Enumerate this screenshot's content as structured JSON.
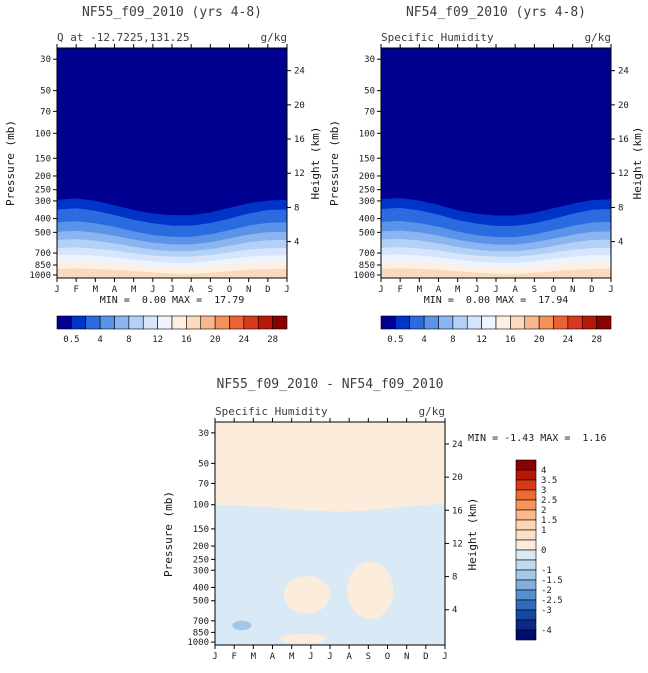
{
  "chart_data": [
    {
      "type": "contour",
      "title": "NF55_f09_2010 (yrs 4-8)",
      "subtitle": "Q at -12.7225,131.25",
      "units": "g/kg",
      "stats": "MIN =  0.00 MAX =  17.79",
      "min": 0.0,
      "max": 17.79,
      "ylabel_left": "Pressure (mb)",
      "ylabel_right": "Height (km)",
      "xlabel_ticks": [
        "J",
        "F",
        "M",
        "A",
        "M",
        "J",
        "J",
        "A",
        "S",
        "O",
        "N",
        "D",
        "J"
      ],
      "pressure_ticks": [
        30,
        50,
        70,
        100,
        150,
        200,
        250,
        300,
        400,
        500,
        700,
        850,
        1000
      ],
      "height_ticks": [
        24,
        20,
        16,
        12,
        8,
        4
      ],
      "y_scale": "log",
      "ylim_mb": [
        1050,
        25
      ],
      "background_value_color": "#000090",
      "contour_bands": [
        {
          "level": 0.5,
          "fill_below": "#0034c8",
          "pressure_by_month": [
            295,
            288,
            300,
            322,
            348,
            368,
            378,
            378,
            362,
            336,
            312,
            298,
            295
          ]
        },
        {
          "level": 2,
          "fill_below": "#2a6cdf",
          "pressure_by_month": [
            345,
            338,
            352,
            378,
            408,
            432,
            448,
            448,
            430,
            400,
            368,
            348,
            345
          ]
        },
        {
          "level": 4,
          "fill_below": "#5b93e8",
          "pressure_by_month": [
            425,
            418,
            432,
            458,
            492,
            522,
            538,
            538,
            516,
            482,
            448,
            428,
            425
          ]
        },
        {
          "level": 6,
          "fill_below": "#8ab5f0",
          "pressure_by_month": [
            495,
            488,
            502,
            528,
            562,
            592,
            608,
            608,
            586,
            552,
            518,
            498,
            495
          ]
        },
        {
          "level": 8,
          "fill_below": "#b3d0f7",
          "pressure_by_month": [
            565,
            558,
            572,
            598,
            632,
            662,
            678,
            678,
            656,
            622,
            588,
            568,
            565
          ]
        },
        {
          "level": 10,
          "fill_below": "#d6e5fb",
          "pressure_by_month": [
            645,
            638,
            652,
            672,
            702,
            728,
            742,
            742,
            722,
            692,
            662,
            648,
            645
          ]
        },
        {
          "level": 12,
          "fill_below": "#edf4fd",
          "pressure_by_month": [
            725,
            718,
            732,
            752,
            778,
            802,
            818,
            818,
            798,
            768,
            742,
            728,
            725
          ]
        },
        {
          "level": 14,
          "fill_below": "#fdf0e2",
          "pressure_by_month": [
            815,
            808,
            818,
            832,
            858,
            878,
            892,
            892,
            872,
            848,
            828,
            818,
            815
          ]
        },
        {
          "level": 16,
          "fill_below": "#fbd9bd",
          "pressure_by_month": [
            905,
            898,
            908,
            918,
            938,
            958,
            978,
            982,
            962,
            938,
            918,
            908,
            905
          ]
        }
      ],
      "colorbar": {
        "colors": [
          "#000090",
          "#0034c8",
          "#2a6cdf",
          "#5b93e8",
          "#8ab5f0",
          "#b3d0f7",
          "#d6e5fb",
          "#edf4fd",
          "#fdf0e2",
          "#fbd9bd",
          "#f8b88d",
          "#f4925c",
          "#ea6335",
          "#d63920",
          "#b51807",
          "#8b0000"
        ],
        "labels": [
          {
            "i": 0,
            "t": "0.5"
          },
          {
            "i": 2,
            "t": "4"
          },
          {
            "i": 4,
            "t": "8"
          },
          {
            "i": 6,
            "t": "12"
          },
          {
            "i": 8,
            "t": "16"
          },
          {
            "i": 10,
            "t": "20"
          },
          {
            "i": 12,
            "t": "24"
          },
          {
            "i": 14,
            "t": "28"
          }
        ]
      }
    },
    {
      "type": "contour",
      "title": "NF54_f09_2010 (yrs 4-8)",
      "subtitle": "Specific Humidity",
      "units": "g/kg",
      "stats": "MIN =  0.00 MAX =  17.94",
      "min": 0.0,
      "max": 17.94,
      "ylabel_left": "Pressure (mb)",
      "ylabel_right": "Height (km)",
      "xlabel_ticks": [
        "J",
        "F",
        "M",
        "A",
        "M",
        "J",
        "J",
        "A",
        "S",
        "O",
        "N",
        "D",
        "J"
      ],
      "pressure_ticks": [
        30,
        50,
        70,
        100,
        150,
        200,
        250,
        300,
        400,
        500,
        700,
        850,
        1000
      ],
      "height_ticks": [
        24,
        20,
        16,
        12,
        8,
        4
      ],
      "y_scale": "log",
      "ylim_mb": [
        1050,
        25
      ],
      "background_value_color": "#000090",
      "contour_bands": [
        {
          "level": 0.5,
          "fill_below": "#0034c8",
          "pressure_by_month": [
            292,
            286,
            298,
            320,
            350,
            370,
            380,
            380,
            364,
            338,
            314,
            296,
            292
          ]
        },
        {
          "level": 2,
          "fill_below": "#2a6cdf",
          "pressure_by_month": [
            342,
            336,
            350,
            376,
            410,
            434,
            450,
            450,
            432,
            402,
            370,
            346,
            342
          ]
        },
        {
          "level": 4,
          "fill_below": "#5b93e8",
          "pressure_by_month": [
            422,
            416,
            430,
            456,
            494,
            524,
            540,
            540,
            518,
            484,
            450,
            426,
            422
          ]
        },
        {
          "level": 6,
          "fill_below": "#8ab5f0",
          "pressure_by_month": [
            492,
            486,
            500,
            526,
            564,
            594,
            610,
            610,
            588,
            554,
            520,
            496,
            492
          ]
        },
        {
          "level": 8,
          "fill_below": "#b3d0f7",
          "pressure_by_month": [
            562,
            556,
            570,
            596,
            634,
            664,
            680,
            680,
            658,
            624,
            590,
            566,
            562
          ]
        },
        {
          "level": 10,
          "fill_below": "#d6e5fb",
          "pressure_by_month": [
            642,
            636,
            650,
            670,
            704,
            730,
            744,
            744,
            724,
            694,
            664,
            646,
            642
          ]
        },
        {
          "level": 12,
          "fill_below": "#edf4fd",
          "pressure_by_month": [
            722,
            716,
            730,
            750,
            780,
            804,
            820,
            820,
            800,
            770,
            744,
            726,
            722
          ]
        },
        {
          "level": 14,
          "fill_below": "#fdf0e2",
          "pressure_by_month": [
            812,
            806,
            816,
            830,
            860,
            880,
            894,
            894,
            874,
            850,
            830,
            816,
            812
          ]
        },
        {
          "level": 16,
          "fill_below": "#fbd9bd",
          "pressure_by_month": [
            902,
            896,
            906,
            916,
            940,
            960,
            980,
            984,
            964,
            940,
            920,
            906,
            902
          ]
        }
      ],
      "colorbar": {
        "colors": [
          "#000090",
          "#0034c8",
          "#2a6cdf",
          "#5b93e8",
          "#8ab5f0",
          "#b3d0f7",
          "#d6e5fb",
          "#edf4fd",
          "#fdf0e2",
          "#fbd9bd",
          "#f8b88d",
          "#f4925c",
          "#ea6335",
          "#d63920",
          "#b51807",
          "#8b0000"
        ],
        "labels": [
          {
            "i": 0,
            "t": "0.5"
          },
          {
            "i": 2,
            "t": "4"
          },
          {
            "i": 4,
            "t": "8"
          },
          {
            "i": 6,
            "t": "12"
          },
          {
            "i": 8,
            "t": "16"
          },
          {
            "i": 10,
            "t": "20"
          },
          {
            "i": 12,
            "t": "24"
          },
          {
            "i": 14,
            "t": "28"
          }
        ]
      }
    },
    {
      "type": "contour-diff",
      "title": "NF55_f09_2010 - NF54_f09_2010",
      "subtitle": "Specific Humidity",
      "units": "g/kg",
      "stats": "MIN = -1.43 MAX =  1.16",
      "min": -1.43,
      "max": 1.16,
      "ylabel_left": "Pressure (mb)",
      "ylabel_right": "Height (km)",
      "xlabel_ticks": [
        "J",
        "F",
        "M",
        "A",
        "M",
        "J",
        "J",
        "A",
        "S",
        "O",
        "N",
        "D",
        "J"
      ],
      "pressure_ticks": [
        30,
        50,
        70,
        100,
        150,
        200,
        250,
        300,
        400,
        500,
        700,
        850,
        1000
      ],
      "height_ticks": [
        24,
        20,
        16,
        12,
        8,
        4
      ],
      "y_scale": "log",
      "ylim_mb": [
        1050,
        25
      ],
      "field_negative_color": "#d9e9f6",
      "field_positive_color": "#fcecdc",
      "strong_negative_color": "#a4c8e8",
      "positive_band_top": {
        "boundary_pressure_by_month": [
          100,
          101,
          103,
          105,
          108,
          110,
          112,
          112,
          110,
          106,
          103,
          100,
          99
        ]
      },
      "anomaly_blobs": [
        {
          "sign": "positive",
          "month_range": [
            3.6,
            6.0
          ],
          "pressure_range": [
            330,
            620
          ]
        },
        {
          "sign": "positive",
          "month_range": [
            6.9,
            9.3
          ],
          "pressure_range": [
            260,
            680
          ]
        },
        {
          "sign": "positive",
          "month_range": [
            3.4,
            5.8
          ],
          "pressure_range": [
            870,
            1030
          ]
        },
        {
          "sign": "negative",
          "month_range": [
            0.9,
            1.9
          ],
          "pressure_range": [
            700,
            820
          ]
        }
      ],
      "colorbar": {
        "colors": [
          "#8b0000",
          "#b51807",
          "#d93a14",
          "#ed6a33",
          "#f79459",
          "#fbb88a",
          "#fdd6b4",
          "#fddfc3",
          "#fcecdc",
          "#d9e9f6",
          "#c0dbf0",
          "#a4c8e8",
          "#7fb0dd",
          "#5590cf",
          "#2f6cbb",
          "#1647a0",
          "#0a2a86",
          "#000d70"
        ],
        "labels": [
          {
            "i": 0,
            "t": "4"
          },
          {
            "i": 1,
            "t": "3.5"
          },
          {
            "i": 2,
            "t": "3"
          },
          {
            "i": 3,
            "t": "2.5"
          },
          {
            "i": 4,
            "t": "2"
          },
          {
            "i": 5,
            "t": "1.5"
          },
          {
            "i": 6,
            "t": "1"
          },
          {
            "i": 8,
            "t": "0"
          },
          {
            "i": 10,
            "t": "-1"
          },
          {
            "i": 11,
            "t": "-1.5"
          },
          {
            "i": 12,
            "t": "-2"
          },
          {
            "i": 13,
            "t": "-2.5"
          },
          {
            "i": 14,
            "t": "-3"
          },
          {
            "i": 16,
            "t": "-4"
          }
        ]
      }
    }
  ]
}
